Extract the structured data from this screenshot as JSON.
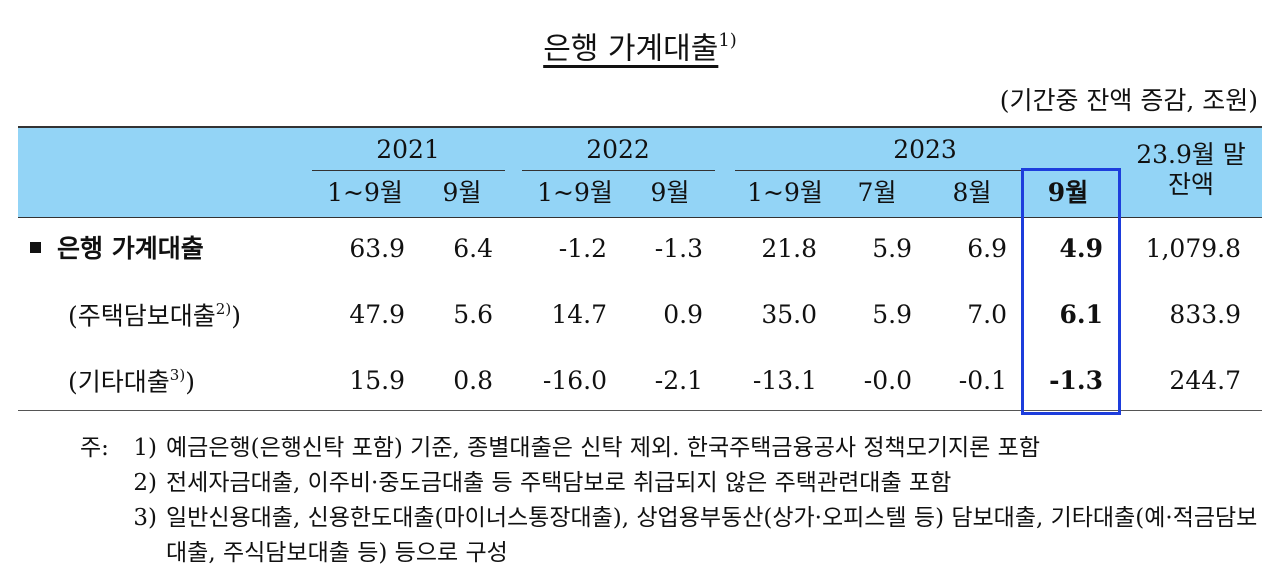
{
  "header": {
    "title": "은행 가계대출",
    "title_note": "1)",
    "unit": "(기간중 잔액 증감, 조원)"
  },
  "table": {
    "years": [
      "2021",
      "2022",
      "2023"
    ],
    "periods": [
      "1~9월",
      "9월",
      "1~9월",
      "9월",
      "1~9월",
      "7월",
      "8월",
      "9월"
    ],
    "last_column": [
      "23.9월 말",
      "잔액"
    ],
    "rows": [
      {
        "prefix": "",
        "label": "은행 가계대출",
        "note": "",
        "suffix": "",
        "values": [
          "63.9",
          "6.4",
          "-1.2",
          "-1.3",
          "21.8",
          "5.9",
          "6.9",
          "4.9",
          "1,079.8"
        ]
      },
      {
        "prefix": "(",
        "label": "주택담보대출",
        "note": "2)",
        "suffix": ")",
        "values": [
          "47.9",
          "5.6",
          "14.7",
          "0.9",
          "35.0",
          "5.9",
          "7.0",
          "6.1",
          "833.9"
        ]
      },
      {
        "prefix": "(",
        "label": "기타대출",
        "note": "3)",
        "suffix": ")",
        "values": [
          "15.9",
          "0.8",
          "-16.0",
          "-2.1",
          "-13.1",
          "-0.0",
          "-0.1",
          "-1.3",
          "244.7"
        ]
      }
    ]
  },
  "notes": {
    "prefix": "주:",
    "items": [
      {
        "number": "1)",
        "text": "예금은행(은행신탁 포함) 기준, 종별대출은 신탁 제외. 한국주택금융공사 정책모기지론 포함"
      },
      {
        "number": "2)",
        "text": "전세자금대출, 이주비·중도금대출 등 주택담보로 취급되지 않은 주택관련대출 포함"
      },
      {
        "number": "3)",
        "text": "일반신용대출, 신용한도대출(마이너스통장대출), 상업용부동산(상가·오피스텔 등) 담보대출, 기타대출(예·적금담보대출, 주식담보대출 등) 등으로 구성"
      }
    ]
  }
}
